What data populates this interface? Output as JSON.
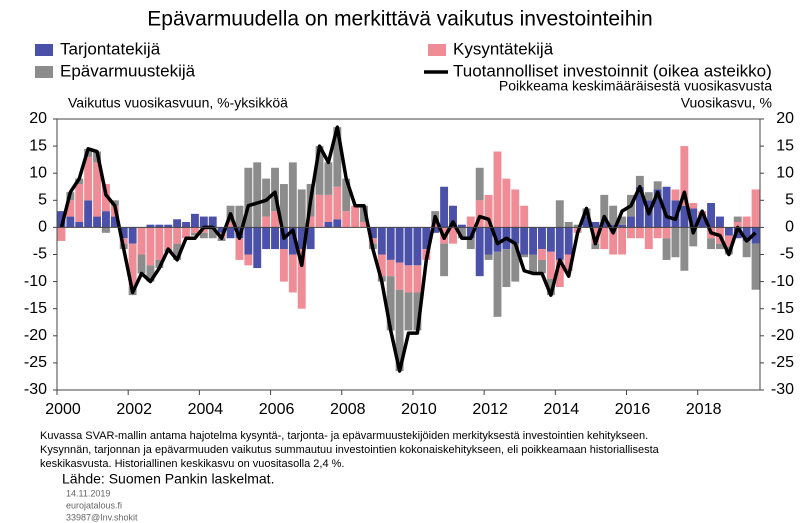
{
  "chart_data": {
    "type": "bar",
    "title": "Epävarmuudella on merkittävä vaikutus investointeihin",
    "y_label": "Vaikutus vuosikasvuun, %-yksikköä",
    "y2_label": [
      "Poikkeama keskimääräisestä vuosikasvusta",
      "Vuosikasvu, %"
    ],
    "footnote": [
      "Kuvassa SVAR-mallin antama hajotelma kysyntä-, tarjonta- ja epävarmuustekijöiden merkityksestä investointien kehitykseen.",
      "Kysynnän, tarjonnan ja epävarmuuden vaikutus summautuu investointien kokonaiskehitykseen, eli poikkeamaan historiallisesta",
      "keskikasvusta. Historiallinen keskikasvu on vuositasolla 2,4 %."
    ],
    "source": "Lähde: Suomen Pankin laskelmat.",
    "meta": [
      "14.11.2019",
      "eurojatalous.fi",
      "33987@Inv.shokit"
    ],
    "stacked": true,
    "x": [
      2000,
      2000.25,
      2000.5,
      2000.75,
      2001,
      2001.25,
      2001.5,
      2001.75,
      2002,
      2002.25,
      2002.5,
      2002.75,
      2003,
      2003.25,
      2003.5,
      2003.75,
      2004,
      2004.25,
      2004.5,
      2004.75,
      2005,
      2005.25,
      2005.5,
      2005.75,
      2006,
      2006.25,
      2006.5,
      2006.75,
      2007,
      2007.25,
      2007.5,
      2007.75,
      2008,
      2008.25,
      2008.5,
      2008.75,
      2009,
      2009.25,
      2009.5,
      2009.75,
      2010,
      2010.25,
      2010.5,
      2010.75,
      2011,
      2011.25,
      2011.5,
      2011.75,
      2012,
      2012.25,
      2012.5,
      2012.75,
      2013,
      2013.25,
      2013.5,
      2013.75,
      2014,
      2014.25,
      2014.5,
      2014.75,
      2015,
      2015.25,
      2015.5,
      2015.75,
      2016,
      2016.25,
      2016.5,
      2016.75,
      2017,
      2017.25,
      2017.5,
      2017.75,
      2018,
      2018.25,
      2018.5,
      2018.75,
      2019,
      2019.25,
      2019.5
    ],
    "xlim": [
      2000,
      2019.75
    ],
    "xticks": [
      2000,
      2002,
      2004,
      2006,
      2008,
      2010,
      2012,
      2014,
      2016,
      2018
    ],
    "ylim": [
      -30,
      20
    ],
    "yticks": [
      20,
      15,
      10,
      5,
      0,
      -5,
      -10,
      -15,
      -20,
      -25,
      -30
    ],
    "y2lim": [
      -30,
      20
    ],
    "y2ticks": [
      20,
      15,
      10,
      5,
      0,
      -5,
      -10,
      -15,
      -20,
      -25,
      -30
    ],
    "series": [
      {
        "name": "Tarjontatekijä",
        "type": "bar",
        "color": "#4b50a8",
        "values": [
          3,
          2,
          1,
          5,
          2,
          3,
          2,
          -2,
          -3,
          0,
          0.5,
          0.5,
          0.5,
          1.5,
          1,
          2.5,
          2,
          2,
          -1,
          -2,
          -2,
          -5,
          -7.5,
          -4,
          -4,
          -4,
          -5,
          -4,
          -4,
          0,
          1,
          1.5,
          0,
          0,
          0,
          -2,
          -5,
          -6,
          -6.5,
          -7,
          -7,
          -4,
          -1,
          7.5,
          4,
          0.5,
          -2,
          -9,
          -5,
          -4.5,
          -4,
          -3,
          -5,
          -5,
          -4,
          -4.5,
          -6,
          -5,
          0,
          2,
          1,
          1,
          0.5,
          0.5,
          2,
          7.5,
          5,
          7,
          7.5,
          5,
          4,
          3.5,
          2,
          4.5,
          2,
          -1.5,
          -2,
          -2.5,
          -3
        ]
      },
      {
        "name": "Kysyntätekijä",
        "type": "bar",
        "color": "#f08c96",
        "values": [
          -2.5,
          3,
          7,
          8,
          10,
          5,
          2,
          -1,
          -8,
          -5,
          -7,
          -6,
          -4,
          -3,
          -2,
          -1,
          -1,
          0,
          -1,
          1,
          -4,
          -2,
          0,
          2,
          3,
          -6,
          -7,
          -11,
          2,
          6,
          5,
          6,
          3,
          4,
          1,
          -1,
          -4,
          -3,
          -5,
          -5,
          -5,
          -2,
          1,
          -3,
          -3,
          0,
          2,
          5,
          6,
          14,
          9,
          7,
          4,
          0,
          -2,
          -5,
          -5,
          -3,
          -1,
          0,
          -3,
          -4,
          -5,
          -5,
          -2,
          -2,
          -4,
          -2,
          -2,
          2,
          11,
          1,
          1,
          -2,
          -3,
          -2,
          1,
          2,
          7
        ]
      },
      {
        "name": "Epävarmuustekijä",
        "type": "bar",
        "color": "#8c8c8c",
        "values": [
          0,
          1.5,
          1,
          1.5,
          2,
          -1,
          1,
          -1,
          -1.5,
          -3.5,
          -3,
          -1.5,
          -0.5,
          -3,
          0,
          -0.5,
          -1,
          -2,
          -0.5,
          3,
          4,
          11,
          12,
          7,
          8,
          8,
          12,
          7,
          6,
          9,
          6,
          11,
          6,
          0,
          3,
          -1,
          -1,
          -10,
          -15,
          -7,
          -7,
          0,
          2,
          -6,
          0,
          -2,
          -2,
          6,
          -1,
          -12,
          -7,
          -7,
          -0.5,
          -3.5,
          -2.5,
          -3,
          5,
          1,
          0.5,
          1.5,
          -1,
          5,
          3.5,
          1.5,
          4,
          2,
          1.5,
          1.5,
          -4,
          -5.5,
          -8,
          -3.5,
          0,
          -2,
          -1,
          -1.5,
          1,
          -3,
          -8.5
        ]
      },
      {
        "name": "Tuotannolliset investoinnit (oikea asteikko)",
        "type": "line",
        "axis": "y2",
        "color": "#000000",
        "values": [
          0,
          6.5,
          9,
          14.5,
          14,
          6,
          4,
          -4,
          -12,
          -8.5,
          -10,
          -7.5,
          -4,
          -6,
          -2,
          -2,
          0,
          0,
          -2,
          2.5,
          -2,
          4,
          4.5,
          5,
          6.5,
          -2,
          -0.5,
          -7,
          5,
          15,
          12,
          18.5,
          9,
          4,
          4,
          -4,
          -10,
          -19,
          -26.5,
          -19.5,
          -19.5,
          -6,
          2,
          -2,
          1,
          -2,
          -2,
          2,
          1.5,
          -3,
          -2,
          -3,
          -8,
          -8.5,
          -8.5,
          -12.5,
          -6,
          -9,
          -1,
          3.5,
          -3,
          2,
          -1,
          3,
          4,
          7.5,
          2.5,
          6.5,
          2,
          1.5,
          6.5,
          -1,
          3,
          -1,
          -1.5,
          -5,
          0,
          -2.5,
          -1
        ]
      }
    ]
  }
}
